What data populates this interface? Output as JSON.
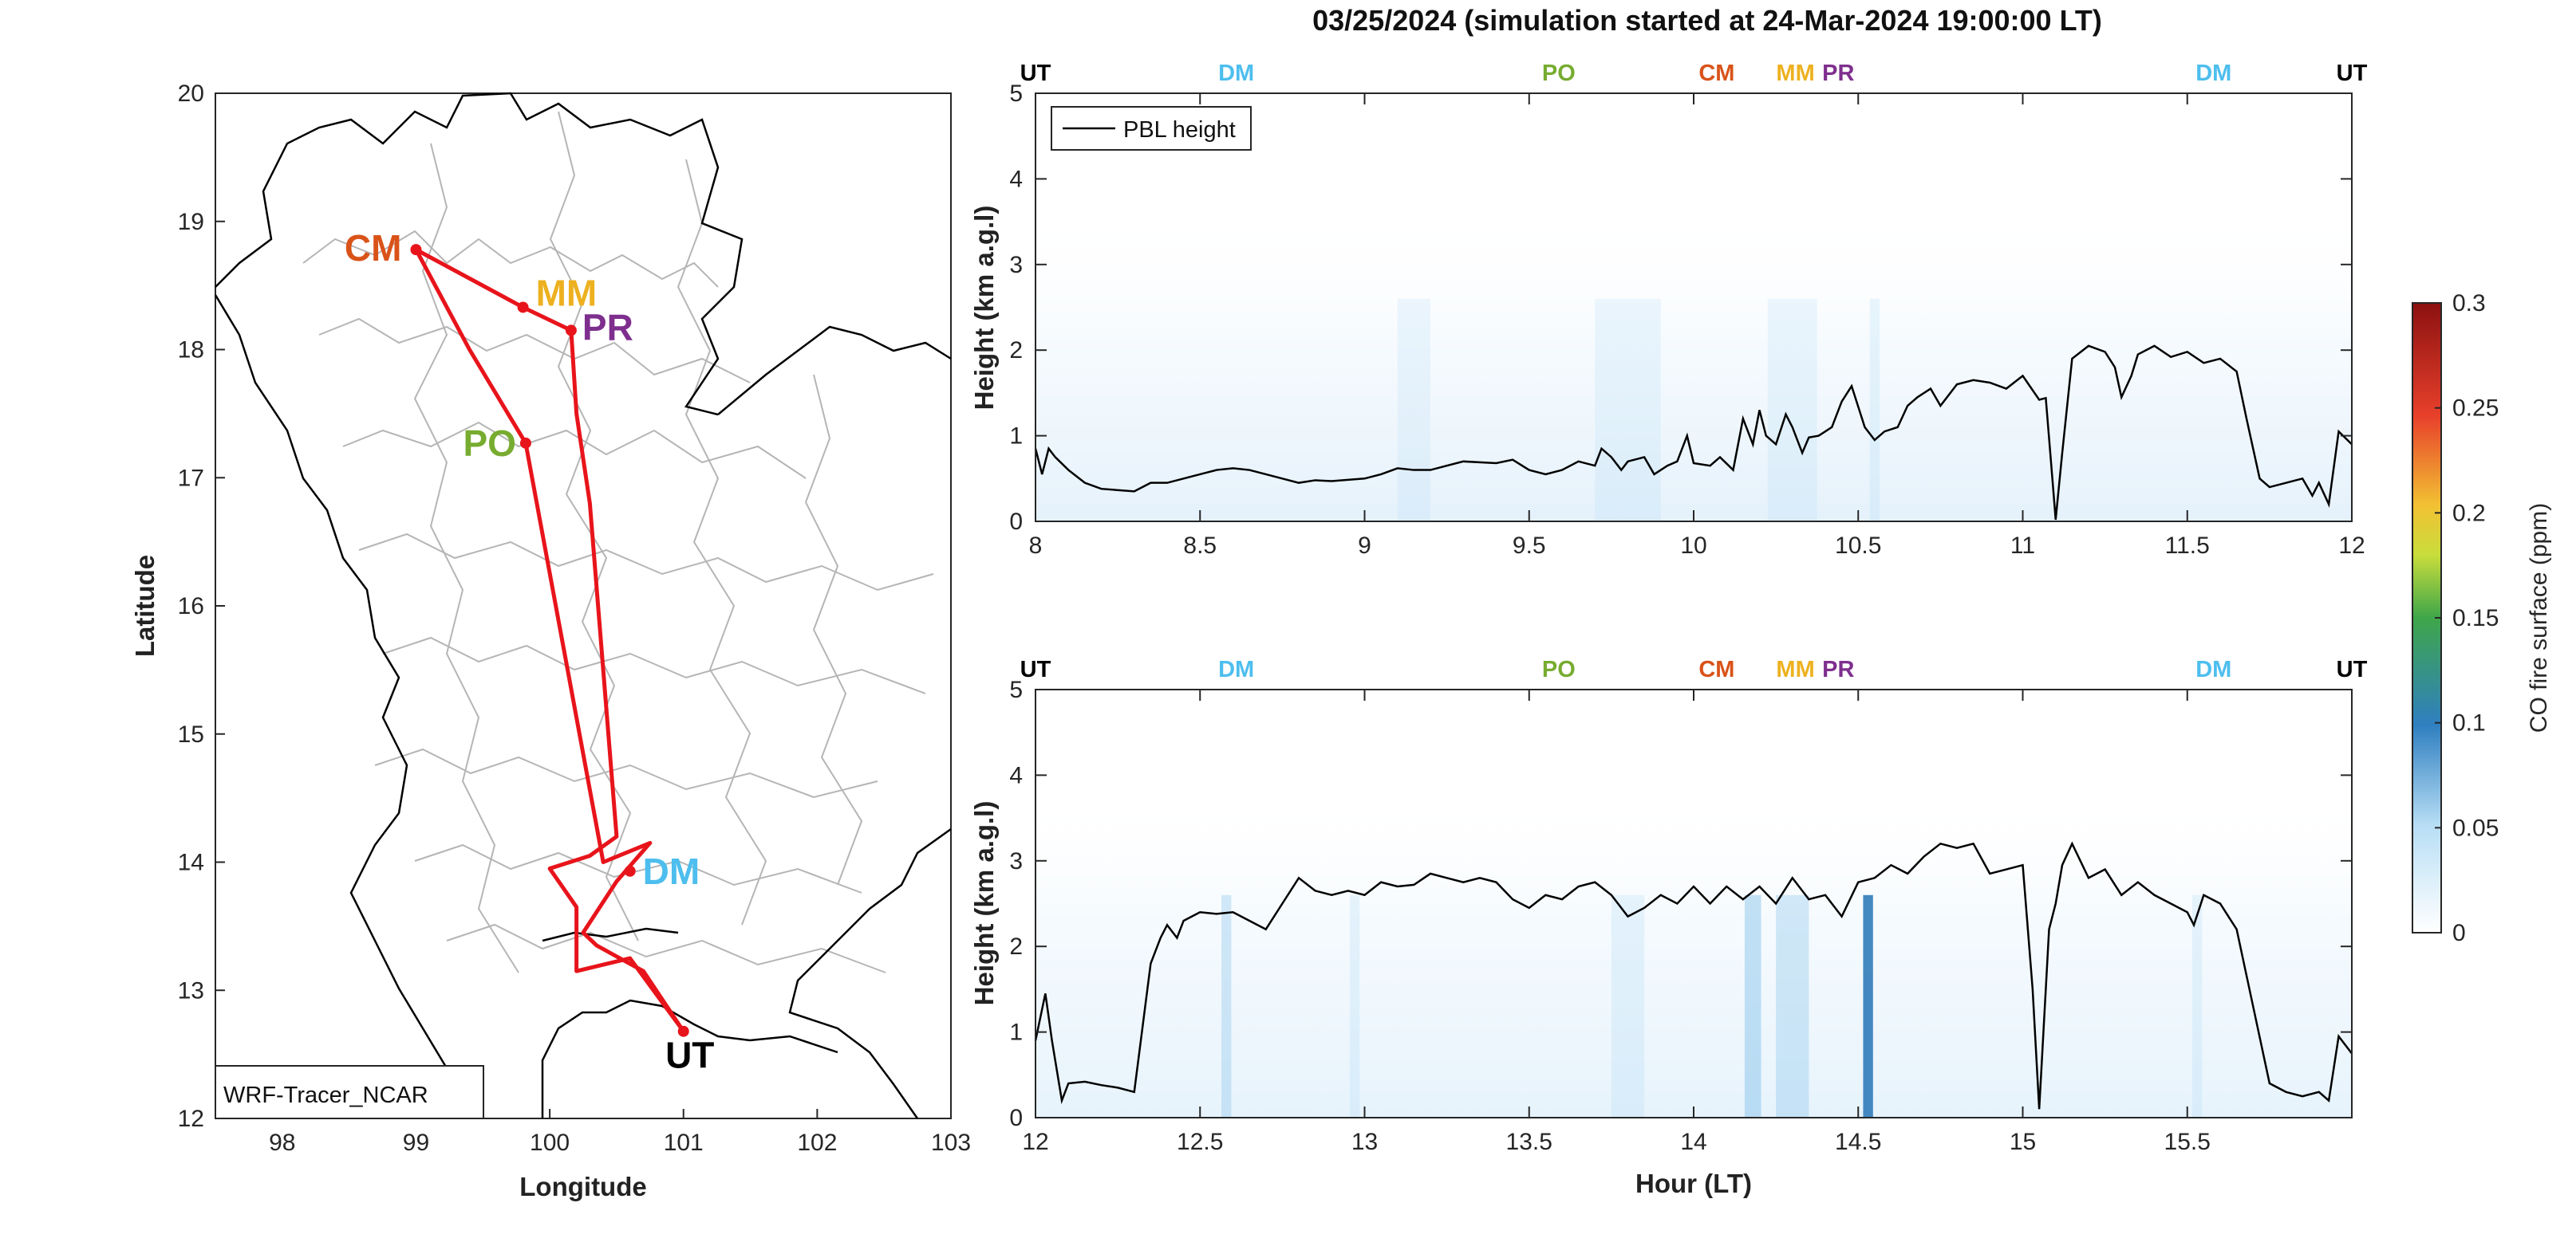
{
  "figure_title": "03/25/2024 (simulation started at 24-Mar-2024 19:00:00 LT)",
  "colors": {
    "CM": "#d95319",
    "MM": "#edb120",
    "PR": "#7e2f8e",
    "PO": "#77ac30",
    "DM": "#4dbeee",
    "UT": "#000000",
    "route": "#e8141b",
    "pbl": "#000000"
  },
  "chart_data": [
    {
      "type": "line",
      "panel": "map",
      "xlabel": "Longitude",
      "ylabel": "Latitude",
      "xlim": [
        97.5,
        103
      ],
      "ylim": [
        12,
        20
      ],
      "xticks": [
        98,
        99,
        100,
        101,
        102,
        103
      ],
      "yticks": [
        12,
        13,
        14,
        15,
        16,
        17,
        18,
        19,
        20
      ],
      "annotation": "WRF-Tracer_NCAR",
      "stations": [
        {
          "name": "CM",
          "lon": 99.0,
          "lat": 18.78
        },
        {
          "name": "MM",
          "lon": 99.8,
          "lat": 18.33
        },
        {
          "name": "PR",
          "lon": 100.16,
          "lat": 18.15
        },
        {
          "name": "PO",
          "lon": 99.82,
          "lat": 17.27
        },
        {
          "name": "DM",
          "lon": 100.6,
          "lat": 13.93
        },
        {
          "name": "UT",
          "lon": 101.0,
          "lat": 12.68
        }
      ],
      "route": [
        [
          101.0,
          12.68
        ],
        [
          100.6,
          13.25
        ],
        [
          100.2,
          13.15
        ],
        [
          100.2,
          13.65
        ],
        [
          100.0,
          13.95
        ],
        [
          100.3,
          14.05
        ],
        [
          100.5,
          14.2
        ],
        [
          100.3,
          16.8
        ],
        [
          100.2,
          17.5
        ],
        [
          100.16,
          18.15
        ],
        [
          99.8,
          18.33
        ],
        [
          99.0,
          18.78
        ],
        [
          99.4,
          18.0
        ],
        [
          99.82,
          17.27
        ],
        [
          100.4,
          14.0
        ],
        [
          100.75,
          14.15
        ],
        [
          100.5,
          13.85
        ],
        [
          100.25,
          13.45
        ],
        [
          100.35,
          13.35
        ],
        [
          100.7,
          13.15
        ],
        [
          101.0,
          12.68
        ]
      ]
    },
    {
      "type": "heatmap",
      "panel": "upper",
      "legend": "PBL height",
      "xlabel": "",
      "ylabel": "Height (km a.g.l)",
      "xlim": [
        8,
        12
      ],
      "ylim": [
        0,
        5
      ],
      "xticks": [
        8,
        8.5,
        9,
        9.5,
        10,
        10.5,
        11,
        11.5,
        12
      ],
      "yticks": [
        0,
        1,
        2,
        3,
        4,
        5
      ],
      "station_marks": [
        {
          "name": "UT",
          "x": 8.0
        },
        {
          "name": "DM",
          "x": 8.61
        },
        {
          "name": "PO",
          "x": 9.59
        },
        {
          "name": "CM",
          "x": 10.07
        },
        {
          "name": "MM",
          "x": 10.3
        },
        {
          "name": "PR",
          "x": 10.41
        },
        {
          "name": "DM",
          "x": 11.58
        },
        {
          "name": "UT",
          "x": 12.0
        }
      ],
      "pbl_height": {
        "x": [
          8.0,
          8.02,
          8.04,
          8.06,
          8.1,
          8.15,
          8.2,
          8.3,
          8.35,
          8.4,
          8.45,
          8.5,
          8.55,
          8.6,
          8.65,
          8.7,
          8.75,
          8.8,
          8.85,
          8.9,
          9.0,
          9.05,
          9.1,
          9.15,
          9.2,
          9.3,
          9.4,
          9.45,
          9.5,
          9.55,
          9.6,
          9.65,
          9.7,
          9.72,
          9.75,
          9.78,
          9.8,
          9.85,
          9.88,
          9.92,
          9.95,
          9.98,
          10.0,
          10.05,
          10.08,
          10.12,
          10.15,
          10.18,
          10.2,
          10.22,
          10.25,
          10.28,
          10.3,
          10.33,
          10.35,
          10.38,
          10.42,
          10.45,
          10.48,
          10.52,
          10.55,
          10.58,
          10.62,
          10.65,
          10.68,
          10.72,
          10.75,
          10.8,
          10.85,
          10.9,
          10.95,
          11.0,
          11.05,
          11.07,
          11.09,
          11.1,
          11.12,
          11.15,
          11.2,
          11.25,
          11.28,
          11.3,
          11.33,
          11.35,
          11.4,
          11.45,
          11.5,
          11.55,
          11.6,
          11.65,
          11.68,
          11.72,
          11.75,
          11.8,
          11.85,
          11.88,
          11.9,
          11.93,
          11.96,
          12.0
        ],
        "y": [
          0.85,
          0.55,
          0.85,
          0.75,
          0.6,
          0.45,
          0.38,
          0.35,
          0.45,
          0.45,
          0.5,
          0.55,
          0.6,
          0.62,
          0.6,
          0.55,
          0.5,
          0.45,
          0.48,
          0.47,
          0.5,
          0.55,
          0.62,
          0.6,
          0.6,
          0.7,
          0.68,
          0.72,
          0.6,
          0.55,
          0.6,
          0.7,
          0.65,
          0.85,
          0.75,
          0.6,
          0.7,
          0.75,
          0.55,
          0.65,
          0.7,
          1.0,
          0.68,
          0.65,
          0.75,
          0.6,
          1.2,
          0.9,
          1.3,
          1.0,
          0.9,
          1.25,
          1.1,
          0.8,
          0.98,
          1.0,
          1.1,
          1.4,
          1.58,
          1.1,
          0.95,
          1.05,
          1.1,
          1.35,
          1.45,
          1.55,
          1.35,
          1.6,
          1.65,
          1.62,
          1.55,
          1.7,
          1.42,
          1.44,
          0.5,
          0.02,
          0.8,
          1.9,
          2.05,
          1.98,
          1.8,
          1.45,
          1.7,
          1.95,
          2.05,
          1.92,
          1.98,
          1.85,
          1.9,
          1.75,
          1.2,
          0.5,
          0.4,
          0.45,
          0.5,
          0.3,
          0.45,
          0.2,
          1.05,
          0.9
        ]
      },
      "co_fire_hotspots": [
        {
          "x": 9.15,
          "width": 0.1,
          "value": 0.01
        },
        {
          "x": 9.8,
          "width": 0.2,
          "value": 0.012
        },
        {
          "x": 10.3,
          "width": 0.15,
          "value": 0.012
        },
        {
          "x": 10.55,
          "width": 0.03,
          "value": 0.018
        }
      ]
    },
    {
      "type": "heatmap",
      "panel": "lower",
      "xlabel": "Hour (LT)",
      "ylabel": "Height (km a.g.l)",
      "xlim": [
        12,
        16
      ],
      "ylim": [
        0,
        5
      ],
      "xticks": [
        12,
        12.5,
        13,
        13.5,
        14,
        14.5,
        15,
        15.5
      ],
      "yticks": [
        0,
        1,
        2,
        3,
        4,
        5
      ],
      "station_marks": [
        {
          "name": "UT",
          "x": 12.0
        },
        {
          "name": "DM",
          "x": 12.61
        },
        {
          "name": "PO",
          "x": 13.59
        },
        {
          "name": "CM",
          "x": 14.07
        },
        {
          "name": "MM",
          "x": 14.3
        },
        {
          "name": "PR",
          "x": 14.41
        },
        {
          "name": "DM",
          "x": 15.58
        },
        {
          "name": "UT",
          "x": 16.0
        }
      ],
      "pbl_height": {
        "x": [
          12.0,
          12.03,
          12.05,
          12.08,
          12.1,
          12.15,
          12.2,
          12.25,
          12.3,
          12.35,
          12.38,
          12.4,
          12.43,
          12.45,
          12.5,
          12.55,
          12.6,
          12.65,
          12.7,
          12.75,
          12.8,
          12.85,
          12.9,
          12.95,
          13.0,
          13.05,
          13.1,
          13.15,
          13.2,
          13.25,
          13.3,
          13.35,
          13.4,
          13.45,
          13.5,
          13.55,
          13.6,
          13.65,
          13.7,
          13.75,
          13.8,
          13.85,
          13.9,
          13.95,
          14.0,
          14.05,
          14.1,
          14.15,
          14.2,
          14.25,
          14.3,
          14.35,
          14.4,
          14.45,
          14.5,
          14.55,
          14.6,
          14.65,
          14.7,
          14.75,
          14.8,
          14.85,
          14.9,
          14.95,
          15.0,
          15.03,
          15.05,
          15.08,
          15.1,
          15.12,
          15.15,
          15.2,
          15.25,
          15.3,
          15.35,
          15.4,
          15.45,
          15.5,
          15.52,
          15.55,
          15.6,
          15.65,
          15.7,
          15.75,
          15.8,
          15.85,
          15.9,
          15.93,
          15.96,
          16.0
        ],
        "y": [
          0.9,
          1.45,
          0.9,
          0.2,
          0.4,
          0.42,
          0.38,
          0.35,
          0.3,
          1.8,
          2.1,
          2.25,
          2.1,
          2.3,
          2.4,
          2.38,
          2.4,
          2.3,
          2.2,
          2.5,
          2.8,
          2.65,
          2.6,
          2.65,
          2.6,
          2.75,
          2.7,
          2.72,
          2.85,
          2.8,
          2.75,
          2.8,
          2.75,
          2.55,
          2.45,
          2.6,
          2.55,
          2.7,
          2.75,
          2.6,
          2.35,
          2.45,
          2.6,
          2.5,
          2.7,
          2.5,
          2.7,
          2.55,
          2.7,
          2.5,
          2.8,
          2.55,
          2.6,
          2.35,
          2.75,
          2.8,
          2.95,
          2.85,
          3.05,
          3.2,
          3.15,
          3.2,
          2.85,
          2.9,
          2.95,
          1.5,
          0.1,
          2.2,
          2.5,
          2.95,
          3.2,
          2.8,
          2.9,
          2.6,
          2.75,
          2.6,
          2.5,
          2.4,
          2.25,
          2.6,
          2.5,
          2.2,
          1.3,
          0.4,
          0.3,
          0.25,
          0.3,
          0.2,
          0.95,
          0.75
        ]
      },
      "co_fire_hotspots": [
        {
          "x": 12.58,
          "width": 0.03,
          "value": 0.03
        },
        {
          "x": 12.97,
          "width": 0.03,
          "value": 0.02
        },
        {
          "x": 13.8,
          "width": 0.1,
          "value": 0.02
        },
        {
          "x": 14.18,
          "width": 0.05,
          "value": 0.05
        },
        {
          "x": 14.3,
          "width": 0.1,
          "value": 0.03
        },
        {
          "x": 14.53,
          "width": 0.03,
          "value": 0.12
        },
        {
          "x": 15.53,
          "width": 0.03,
          "value": 0.02
        }
      ]
    },
    {
      "type": "colorbar",
      "label": "CO fire surface (ppm)",
      "range": [
        0,
        0.3
      ],
      "ticks": [
        0,
        0.05,
        0.1,
        0.15,
        0.2,
        0.25,
        0.3
      ]
    }
  ]
}
